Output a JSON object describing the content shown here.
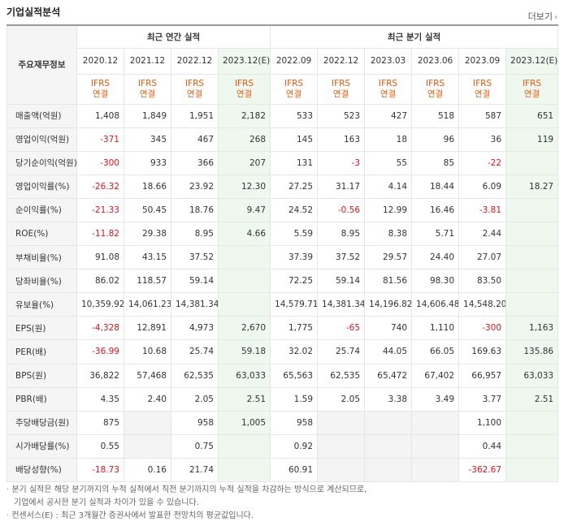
{
  "header": {
    "title": "기업실적분석",
    "more_label": "더보기"
  },
  "table": {
    "corner_label": "주요재무정보",
    "group_annual": "최근 연간 실적",
    "group_quarter": "최근 분기 실적",
    "periods": [
      "2020.12",
      "2021.12",
      "2022.12",
      "2023.12(E)",
      "2022.09",
      "2022.12",
      "2023.03",
      "2023.06",
      "2023.09",
      "2023.12(E)"
    ],
    "ifrs_top": "IFRS",
    "ifrs_bottom": "연결",
    "rows": [
      {
        "label": "매출액(억원)",
        "values": [
          "1,408",
          "1,849",
          "1,951",
          "2,182",
          "533",
          "523",
          "427",
          "518",
          "587",
          "651"
        ]
      },
      {
        "label": "영업이익(억원)",
        "values": [
          "-371",
          "345",
          "467",
          "268",
          "145",
          "163",
          "18",
          "96",
          "36",
          "119"
        ]
      },
      {
        "label": "당기순이익(억원)",
        "values": [
          "-300",
          "933",
          "366",
          "207",
          "131",
          "-3",
          "55",
          "85",
          "-22",
          ""
        ]
      },
      {
        "label": "영업이익률(%)",
        "values": [
          "-26.32",
          "18.66",
          "23.92",
          "12.30",
          "27.25",
          "31.17",
          "4.14",
          "18.44",
          "6.09",
          "18.27"
        ]
      },
      {
        "label": "순이익률(%)",
        "values": [
          "-21.33",
          "50.45",
          "18.76",
          "9.47",
          "24.52",
          "-0.56",
          "12.99",
          "16.46",
          "-3.81",
          ""
        ]
      },
      {
        "label": "ROE(%)",
        "values": [
          "-11.82",
          "29.38",
          "8.95",
          "4.66",
          "5.59",
          "8.95",
          "8.38",
          "5.71",
          "2.44",
          ""
        ]
      },
      {
        "label": "부채비율(%)",
        "values": [
          "91.08",
          "43.15",
          "37.52",
          "",
          "37.39",
          "37.52",
          "29.57",
          "24.40",
          "27.07",
          ""
        ]
      },
      {
        "label": "당좌비율(%)",
        "values": [
          "86.02",
          "118.57",
          "59.14",
          "",
          "72.25",
          "59.14",
          "81.56",
          "98.30",
          "83.50",
          ""
        ]
      },
      {
        "label": "유보율(%)",
        "values": [
          "10,359.92",
          "14,061.23",
          "14,381.34",
          "",
          "14,579.71",
          "14,381.34",
          "14,196.82",
          "14,606.48",
          "14,548.20",
          ""
        ]
      },
      {
        "label": "EPS(원)",
        "values": [
          "-4,328",
          "12,891",
          "4,973",
          "2,670",
          "1,775",
          "-65",
          "740",
          "1,110",
          "-300",
          "1,163"
        ]
      },
      {
        "label": "PER(배)",
        "values": [
          "-36.99",
          "10.68",
          "25.74",
          "59.18",
          "32.02",
          "25.74",
          "44.05",
          "66.05",
          "169.63",
          "135.86"
        ]
      },
      {
        "label": "BPS(원)",
        "values": [
          "36,822",
          "57,468",
          "62,535",
          "63,033",
          "65,563",
          "62,535",
          "65,472",
          "67,402",
          "66,957",
          "63,033"
        ]
      },
      {
        "label": "PBR(배)",
        "values": [
          "4.35",
          "2.40",
          "2.05",
          "2.51",
          "1.59",
          "2.05",
          "3.38",
          "3.49",
          "3.77",
          "2.51"
        ]
      },
      {
        "label": "주당배당금(원)",
        "values": [
          "875",
          "",
          "958",
          "1,005",
          "958",
          "",
          "",
          "",
          "1,100",
          ""
        ]
      },
      {
        "label": "시가배당률(%)",
        "values": [
          "0.55",
          "",
          "0.75",
          "",
          "0.92",
          "",
          "",
          "",
          "0.44",
          ""
        ]
      },
      {
        "label": "배당성향(%)",
        "values": [
          "-18.73",
          "0.16",
          "21.74",
          "",
          "60.91",
          "",
          "",
          "",
          "-362.67",
          ""
        ]
      }
    ]
  },
  "notes": [
    "분기 실적은 해당 분기까지의 누적 실적에서 직전 분기까지의 누적 실적을 차감하는 방식으로 계산되므로,",
    "기업에서 공시한 분기 실적과 차이가 있을 수 있습니다.",
    "컨센서스(E) : 최근 3개월간 증권사에서 발표한 전망치의 평균값입니다."
  ],
  "colors": {
    "negative": "#e8111a",
    "ifrs": "#e85a0e",
    "estimate_bg": "#eef8ee",
    "label_bg": "#f5f5f5"
  }
}
